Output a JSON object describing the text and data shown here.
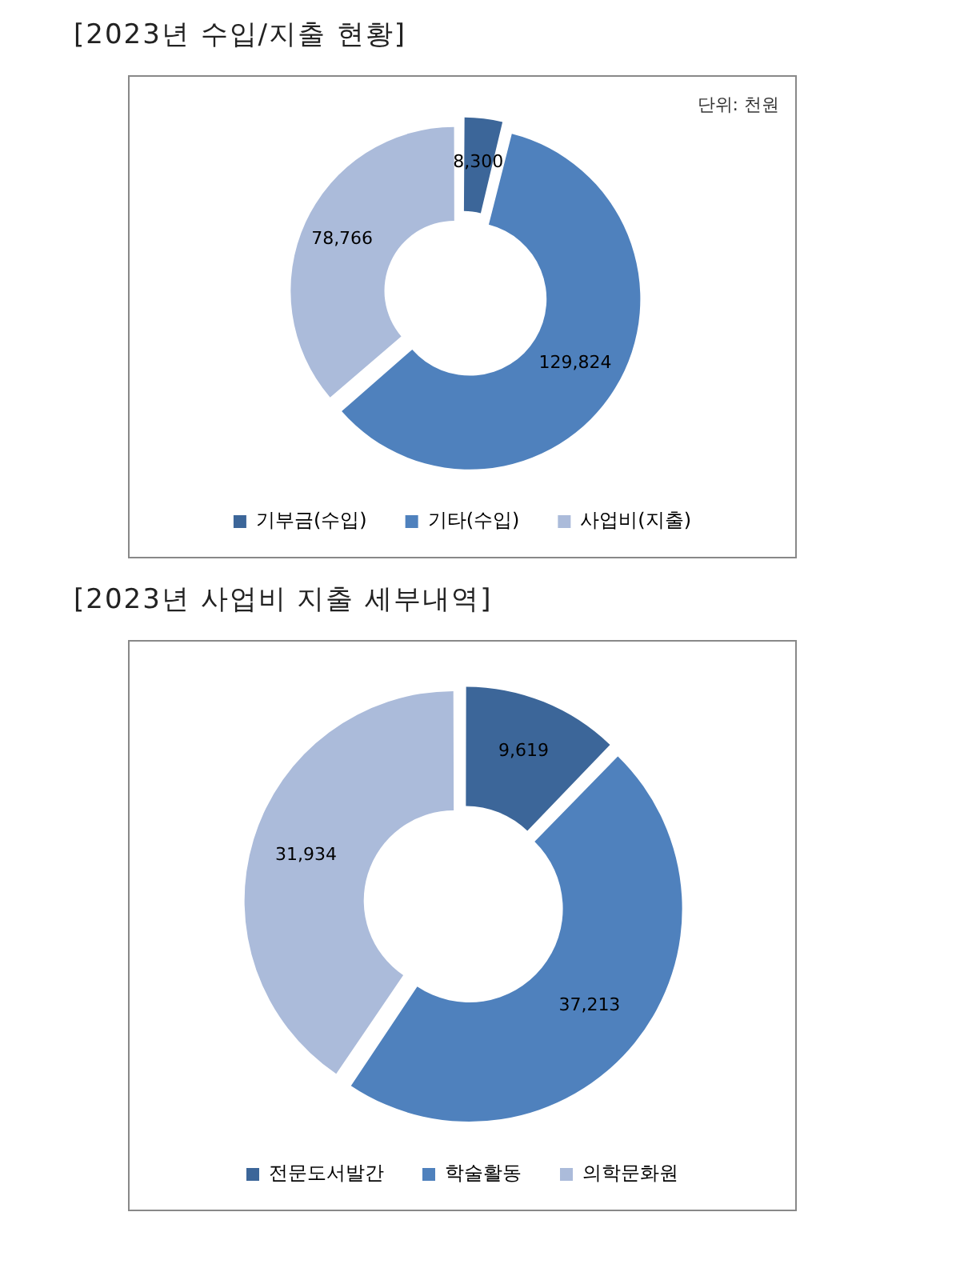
{
  "chart_data": [
    {
      "type": "donut",
      "title": "[2023년 수입/지출 현황]",
      "annotations": [
        "단위: 천원"
      ],
      "categories": [
        "기부금(수입)",
        "기타(수입)",
        "사업비(지출)"
      ],
      "values": [
        8300,
        129824,
        78766
      ],
      "colors": [
        "#3c6699",
        "#4f81bd",
        "#abbbda"
      ],
      "value_labels": [
        "8,300",
        "129,824",
        "78,766"
      ],
      "legend": "bottom"
    },
    {
      "type": "donut",
      "title": "[2023년 사업비 지출 세부내역]",
      "categories": [
        "전문도서발간",
        "학술활동",
        "의학문화원"
      ],
      "values": [
        9619,
        37213,
        31934
      ],
      "colors": [
        "#3c6699",
        "#4f81bd",
        "#abbbda"
      ],
      "value_labels": [
        "9,619",
        "37,213",
        "31,934"
      ],
      "legend": "bottom"
    }
  ]
}
